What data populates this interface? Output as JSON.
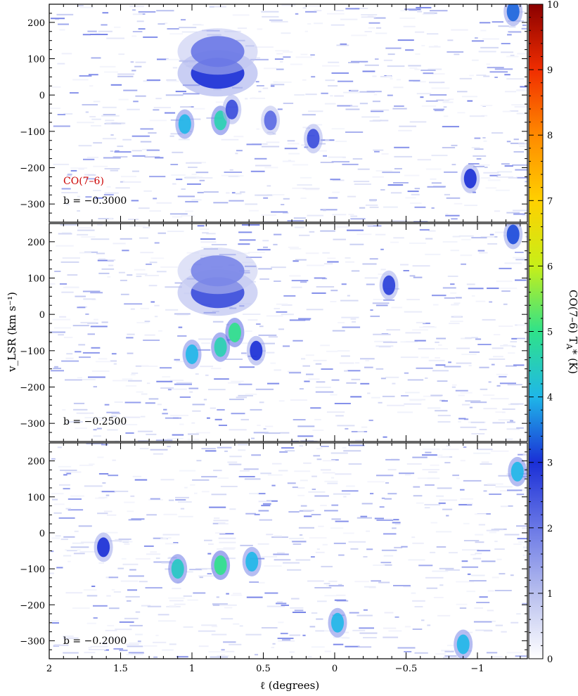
{
  "chart_data": [
    {
      "type": "heatmap",
      "panel": 1,
      "line_label": "CO(7–6)",
      "slice_label": "b = −0.3000",
      "ylabel": "v_LSR (km s⁻¹)",
      "ylim": [
        -350,
        250
      ],
      "yticks": [
        -300,
        -200,
        -100,
        0,
        100,
        200
      ],
      "xlim": [
        2.0,
        -1.35
      ],
      "features": [
        {
          "name": "shell",
          "l_center": 0.82,
          "v_center": 60,
          "peak_K": 3.0
        },
        {
          "name": "arc",
          "l_center": 0.82,
          "v_center": 120,
          "peak_K": 2.0
        },
        {
          "name": "compact-clump",
          "l_center": 0.8,
          "v_center": -70,
          "peak_K": 4.6
        },
        {
          "name": "compact-clump",
          "l_center": 1.05,
          "v_center": -80,
          "peak_K": 4.0
        },
        {
          "name": "compact-clump",
          "l_center": 0.72,
          "v_center": -40,
          "peak_K": 2.6
        },
        {
          "name": "compact-clump",
          "l_center": 0.15,
          "v_center": -120,
          "peak_K": 2.6
        },
        {
          "name": "compact-clump",
          "l_center": 0.45,
          "v_center": -70,
          "peak_K": 2.2
        },
        {
          "name": "compact-clump",
          "l_center": -1.25,
          "v_center": 230,
          "peak_K": 3.4
        },
        {
          "name": "compact-clump",
          "l_center": -0.95,
          "v_center": -230,
          "peak_K": 3.0
        }
      ]
    },
    {
      "type": "heatmap",
      "panel": 2,
      "slice_label": "b = −0.2500",
      "ylim": [
        -350,
        250
      ],
      "yticks": [
        -300,
        -200,
        -100,
        0,
        100,
        200
      ],
      "xlim": [
        2.0,
        -1.35
      ],
      "features": [
        {
          "name": "shell",
          "l_center": 0.82,
          "v_center": 60,
          "peak_K": 2.6
        },
        {
          "name": "arc",
          "l_center": 0.82,
          "v_center": 120,
          "peak_K": 1.8
        },
        {
          "name": "compact-clump",
          "l_center": 0.8,
          "v_center": -90,
          "peak_K": 4.6
        },
        {
          "name": "compact-clump",
          "l_center": 1.0,
          "v_center": -110,
          "peak_K": 4.0
        },
        {
          "name": "compact-clump",
          "l_center": 0.7,
          "v_center": -50,
          "peak_K": 5.0
        },
        {
          "name": "compact-clump",
          "l_center": 0.55,
          "v_center": -100,
          "peak_K": 3.0
        },
        {
          "name": "compact-clump",
          "l_center": -0.38,
          "v_center": 80,
          "peak_K": 2.8
        },
        {
          "name": "compact-clump",
          "l_center": -1.25,
          "v_center": 220,
          "peak_K": 3.2
        }
      ]
    },
    {
      "type": "heatmap",
      "panel": 3,
      "slice_label": "b = −0.2000",
      "ylim": [
        -350,
        250
      ],
      "yticks": [
        -300,
        -200,
        -100,
        0,
        100,
        200
      ],
      "xlabel": "ℓ (degrees)",
      "xlim": [
        2.0,
        -1.35
      ],
      "xticks": [
        2,
        1.5,
        1,
        0.5,
        0,
        -0.5,
        -1
      ],
      "xtick_labels": [
        "2",
        "1.5",
        "1",
        "0.5",
        "0",
        "−0.5",
        "−1"
      ],
      "features": [
        {
          "name": "compact-clump",
          "l_center": 0.8,
          "v_center": -90,
          "peak_K": 5.0
        },
        {
          "name": "compact-clump",
          "l_center": 1.1,
          "v_center": -100,
          "peak_K": 4.4
        },
        {
          "name": "compact-clump",
          "l_center": 0.58,
          "v_center": -80,
          "peak_K": 4.0
        },
        {
          "name": "compact-clump",
          "l_center": 1.62,
          "v_center": -40,
          "peak_K": 3.0
        },
        {
          "name": "compact-clump",
          "l_center": -0.02,
          "v_center": -250,
          "peak_K": 4.0
        },
        {
          "name": "compact-clump",
          "l_center": -1.28,
          "v_center": 170,
          "peak_K": 4.0
        },
        {
          "name": "compact-clump",
          "l_center": -0.9,
          "v_center": -310,
          "peak_K": 4.0
        }
      ]
    }
  ],
  "colorbar": {
    "label": "CO(7–6) T",
    "label_subscript": "A",
    "label_suffix": "* (K)",
    "ticks": [
      0,
      1,
      2,
      3,
      4,
      5,
      6,
      7,
      8,
      9,
      10
    ],
    "range": [
      0,
      10
    ]
  },
  "colors": {
    "annotation_red": "#cc0000",
    "colormap": [
      "#ffffff",
      "#b8bfee",
      "#6a78e6",
      "#1a2fd6",
      "#1fb7e8",
      "#2fe28a",
      "#c8ef18",
      "#ffd000",
      "#ff8a00",
      "#f02d00",
      "#8a0000"
    ]
  }
}
